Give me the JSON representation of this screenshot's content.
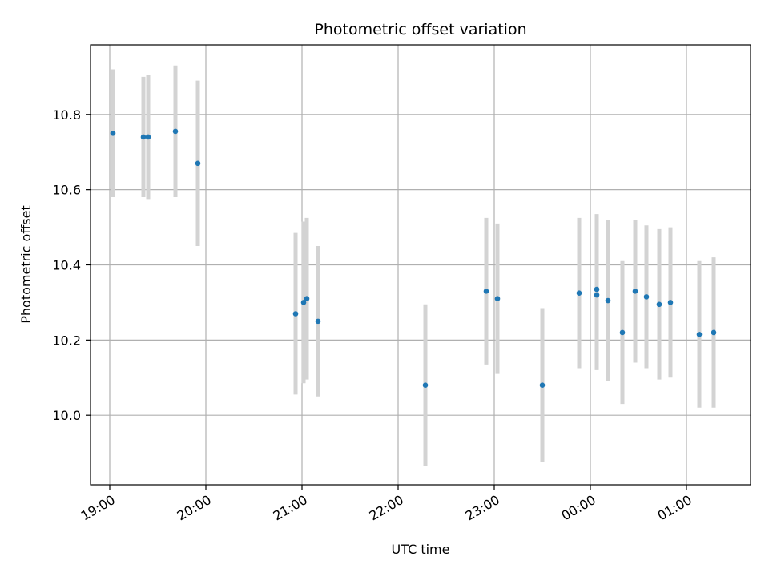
{
  "chart_data": {
    "type": "scatter",
    "title": "Photometric offset variation",
    "xlabel": "UTC time",
    "ylabel": "Photometric offset",
    "x_tick_labels": [
      "19:00",
      "20:00",
      "21:00",
      "22:00",
      "23:00",
      "00:00",
      "01:00"
    ],
    "y_tick_labels": [
      "10.0",
      "10.2",
      "10.4",
      "10.6",
      "10.8"
    ],
    "grid": true,
    "colors": {
      "points": "#1f77b4",
      "error_bars": "#d3d3d3",
      "grid": "#b0b0b0"
    },
    "points": [
      {
        "time": "19:02",
        "y": 10.75,
        "err": 0.17
      },
      {
        "time": "19:21",
        "y": 10.74,
        "err": 0.16
      },
      {
        "time": "19:24",
        "y": 10.74,
        "err": 0.165
      },
      {
        "time": "19:41",
        "y": 10.755,
        "err": 0.175
      },
      {
        "time": "19:55",
        "y": 10.67,
        "err": 0.22
      },
      {
        "time": "20:56",
        "y": 10.27,
        "err": 0.215
      },
      {
        "time": "21:01",
        "y": 10.3,
        "err": 0.215
      },
      {
        "time": "21:03",
        "y": 10.31,
        "err": 0.215
      },
      {
        "time": "21:10",
        "y": 10.25,
        "err": 0.2
      },
      {
        "time": "22:17",
        "y": 10.08,
        "err": 0.215
      },
      {
        "time": "22:55",
        "y": 10.33,
        "err": 0.195
      },
      {
        "time": "23:02",
        "y": 10.31,
        "err": 0.2
      },
      {
        "time": "23:30",
        "y": 10.08,
        "err": 0.205
      },
      {
        "time": "23:53",
        "y": 10.325,
        "err": 0.2
      },
      {
        "time": "00:04",
        "y": 10.335,
        "err": 0.2
      },
      {
        "time": "00:04",
        "y": 10.32,
        "err": 0.2
      },
      {
        "time": "00:11",
        "y": 10.305,
        "err": 0.215
      },
      {
        "time": "00:20",
        "y": 10.22,
        "err": 0.19
      },
      {
        "time": "00:28",
        "y": 10.33,
        "err": 0.19
      },
      {
        "time": "00:35",
        "y": 10.315,
        "err": 0.19
      },
      {
        "time": "00:43",
        "y": 10.295,
        "err": 0.2
      },
      {
        "time": "00:50",
        "y": 10.3,
        "err": 0.2
      },
      {
        "time": "01:08",
        "y": 10.215,
        "err": 0.195
      },
      {
        "time": "01:17",
        "y": 10.22,
        "err": 0.2
      }
    ]
  }
}
